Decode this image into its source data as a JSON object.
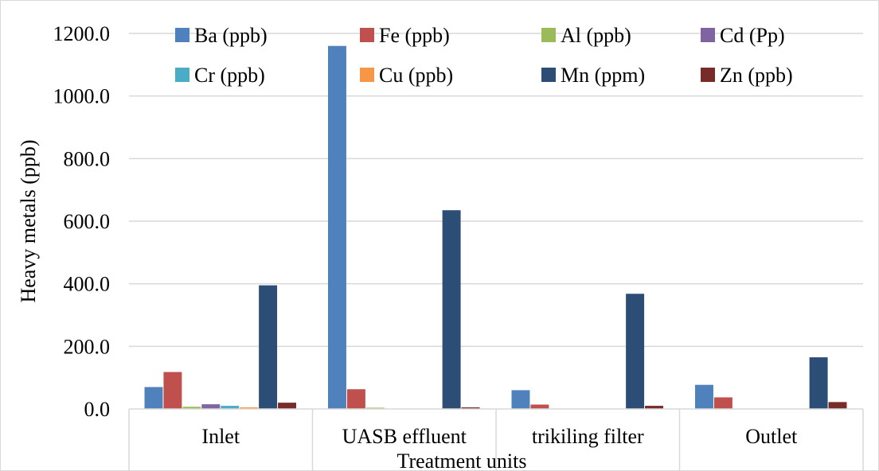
{
  "chart_data": {
    "type": "bar",
    "title": "",
    "xlabel": "Treatment units",
    "ylabel": "Heavy metals (ppb)",
    "ylim": [
      0,
      1200
    ],
    "yticks": [
      0,
      200,
      400,
      600,
      800,
      1000,
      1200
    ],
    "ytick_labels": [
      "0.0",
      "200.0",
      "400.0",
      "600.0",
      "800.0",
      "1000.0",
      "1200.0"
    ],
    "grid": true,
    "legend_position": "top",
    "categories": [
      "Inlet",
      "UASB effluent",
      "trikiling filter",
      "Outlet"
    ],
    "series": [
      {
        "name": "Ba (ppb)",
        "color": "#4f81bd",
        "values": [
          70,
          1160,
          60,
          77
        ]
      },
      {
        "name": "Fe (ppb)",
        "color": "#c0504d",
        "values": [
          118,
          63,
          14,
          37
        ]
      },
      {
        "name": "Al (ppb)",
        "color": "#9bbb59",
        "values": [
          7,
          4,
          1,
          1
        ]
      },
      {
        "name": "Cd (Pp)",
        "color": "#8064a2",
        "values": [
          15,
          1,
          1,
          1
        ]
      },
      {
        "name": "Cr (ppb)",
        "color": "#4bacc6",
        "values": [
          10,
          1,
          1,
          1
        ]
      },
      {
        "name": "Cu (ppb)",
        "color": "#f79646",
        "values": [
          5,
          1,
          1,
          1
        ]
      },
      {
        "name": "Mn (ppm)",
        "color": "#2c4d75",
        "values": [
          395,
          635,
          368,
          165
        ]
      },
      {
        "name": "Zn (ppb)",
        "color": "#772c2a",
        "values": [
          20,
          5,
          10,
          22
        ]
      }
    ]
  }
}
